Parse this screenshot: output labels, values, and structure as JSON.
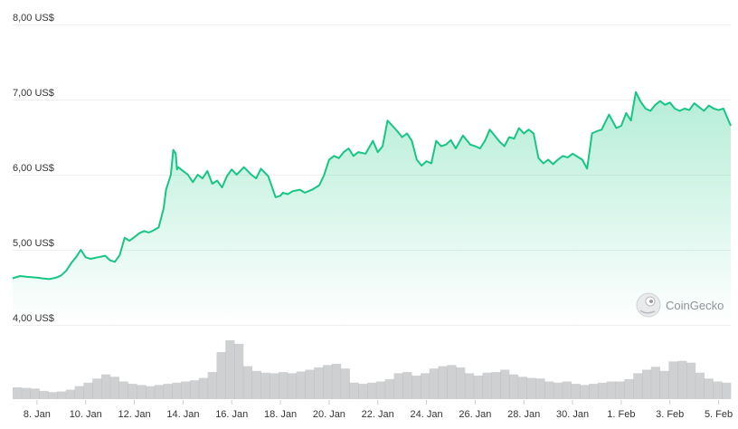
{
  "chart_data": {
    "type": "area",
    "title": "",
    "xlabel": "",
    "ylabel": "",
    "ylim": [
      4.0,
      8.0
    ],
    "y_ticks": [
      "8,00 US$",
      "7,00 US$",
      "6,00 US$",
      "5,00 US$",
      "4,00 US$"
    ],
    "y_tick_values": [
      8,
      7,
      6,
      5,
      4
    ],
    "x_ticks": [
      "8. Jan",
      "10. Jan",
      "12. Jan",
      "14. Jan",
      "16. Jan",
      "18. Jan",
      "20. Jan",
      "22. Jan",
      "24. Jan",
      "26. Jan",
      "28. Jan",
      "30. Jan",
      "1. Feb",
      "3. Feb",
      "5. Feb"
    ],
    "x_tick_days": [
      1,
      3,
      5,
      7,
      9,
      11,
      13,
      15,
      17,
      19,
      21,
      23,
      25,
      27,
      29
    ],
    "x_range_days": [
      0,
      29.5
    ],
    "line_color": "#16c784",
    "fill_color": "#16c784",
    "volume_color": "#a6a9ad",
    "grid": true,
    "series": [
      {
        "x": [
          0,
          0.3,
          0.6,
          1.0,
          1.2,
          1.5,
          1.8,
          2.0,
          2.2,
          2.4,
          2.6,
          2.8,
          3.0,
          3.2,
          3.5,
          3.8,
          4.0,
          4.2,
          4.4,
          4.6,
          4.8,
          5.0,
          5.2,
          5.4,
          5.6,
          5.8,
          6.0,
          6.2,
          6.3,
          6.5,
          6.6,
          6.7,
          6.75,
          6.8,
          7.0,
          7.2,
          7.4,
          7.6,
          7.8,
          8.0,
          8.2,
          8.4,
          8.6,
          8.8,
          9.0,
          9.2,
          9.5,
          9.8,
          10.0,
          10.2,
          10.5,
          10.8,
          11.0,
          11.1,
          11.3,
          11.5,
          11.8,
          12.0,
          12.3,
          12.6,
          12.8,
          13.0,
          13.2,
          13.4,
          13.6,
          13.8,
          14.0,
          14.2,
          14.5,
          14.8,
          15.0,
          15.2,
          15.4,
          15.6,
          15.8,
          16.0,
          16.2,
          16.4,
          16.6,
          16.8,
          17.0,
          17.2,
          17.4,
          17.6,
          17.8,
          18.0,
          18.2,
          18.5,
          18.8,
          19.0,
          19.2,
          19.4,
          19.6,
          19.8,
          20.0,
          20.2,
          20.4,
          20.6,
          20.8,
          21.0,
          21.2,
          21.4,
          21.6,
          21.8,
          22.0,
          22.2,
          22.4,
          22.6,
          22.8,
          23.0,
          23.2,
          23.4,
          23.6,
          23.8,
          24.0,
          24.2,
          24.5,
          24.8,
          25.0,
          25.2,
          25.4,
          25.6,
          25.8,
          26.0,
          26.2,
          26.4,
          26.6,
          26.8,
          27.0,
          27.2,
          27.4,
          27.6,
          27.8,
          28.0,
          28.2,
          28.4,
          28.6,
          28.8,
          29.0,
          29.2,
          29.5
        ],
        "values": [
          4.62,
          4.65,
          4.64,
          4.63,
          4.62,
          4.61,
          4.63,
          4.66,
          4.72,
          4.82,
          4.9,
          5.0,
          4.9,
          4.88,
          4.9,
          4.92,
          4.86,
          4.84,
          4.93,
          5.16,
          5.12,
          5.17,
          5.22,
          5.25,
          5.23,
          5.26,
          5.3,
          5.55,
          5.8,
          6.0,
          6.33,
          6.28,
          6.07,
          6.1,
          6.05,
          6.0,
          5.9,
          6.0,
          5.95,
          6.05,
          5.88,
          5.92,
          5.83,
          5.98,
          6.07,
          6.0,
          6.1,
          6.0,
          5.95,
          6.08,
          5.98,
          5.7,
          5.72,
          5.76,
          5.74,
          5.78,
          5.8,
          5.76,
          5.8,
          5.86,
          6.0,
          6.2,
          6.25,
          6.22,
          6.3,
          6.35,
          6.25,
          6.3,
          6.28,
          6.45,
          6.3,
          6.38,
          6.72,
          6.65,
          6.58,
          6.5,
          6.55,
          6.45,
          6.2,
          6.12,
          6.18,
          6.15,
          6.45,
          6.38,
          6.4,
          6.46,
          6.35,
          6.52,
          6.4,
          6.38,
          6.35,
          6.45,
          6.6,
          6.52,
          6.44,
          6.38,
          6.5,
          6.48,
          6.62,
          6.55,
          6.6,
          6.55,
          6.22,
          6.15,
          6.2,
          6.14,
          6.2,
          6.25,
          6.23,
          6.28,
          6.24,
          6.2,
          6.08,
          6.55,
          6.58,
          6.6,
          6.8,
          6.62,
          6.65,
          6.82,
          6.72,
          7.1,
          6.97,
          6.88,
          6.85,
          6.93,
          6.98,
          6.93,
          6.96,
          6.88,
          6.85,
          6.88,
          6.86,
          6.95,
          6.9,
          6.85,
          6.92,
          6.88,
          6.86,
          6.88,
          6.65
        ]
      }
    ],
    "volume": [
      0.2,
      0.19,
      0.18,
      0.14,
      0.12,
      0.13,
      0.16,
      0.22,
      0.28,
      0.35,
      0.42,
      0.38,
      0.3,
      0.26,
      0.24,
      0.22,
      0.24,
      0.26,
      0.28,
      0.3,
      0.32,
      0.36,
      0.46,
      0.8,
      1.0,
      0.94,
      0.56,
      0.48,
      0.45,
      0.44,
      0.46,
      0.44,
      0.47,
      0.5,
      0.54,
      0.58,
      0.6,
      0.52,
      0.28,
      0.26,
      0.28,
      0.3,
      0.34,
      0.44,
      0.46,
      0.4,
      0.44,
      0.52,
      0.56,
      0.58,
      0.54,
      0.44,
      0.4,
      0.45,
      0.46,
      0.5,
      0.42,
      0.38,
      0.36,
      0.35,
      0.3,
      0.28,
      0.3,
      0.26,
      0.24,
      0.26,
      0.28,
      0.3,
      0.3,
      0.34,
      0.44,
      0.5,
      0.55,
      0.48,
      0.64,
      0.65,
      0.62,
      0.45,
      0.35,
      0.3,
      0.28
    ]
  },
  "watermark": {
    "text": "CoinGecko",
    "icon": "gecko-icon"
  }
}
